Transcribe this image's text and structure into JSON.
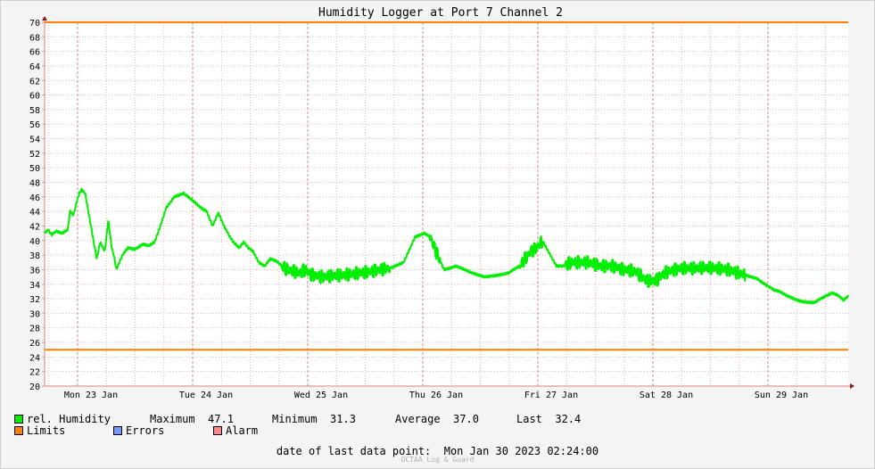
{
  "chart_data": {
    "type": "line",
    "title": "Humidity Logger at Port 7 Channel 2",
    "ylim": [
      20,
      70
    ],
    "ytick_step": 2,
    "xlim": [
      0,
      6.94
    ],
    "x_tick_labels": [
      "Mon 23 Jan",
      "Tue 24 Jan",
      "Wed 25 Jan",
      "Thu 26 Jan",
      "Fri 27 Jan",
      "Sat 28 Jan",
      "Sun 29 Jan"
    ],
    "grid": true,
    "limits": [
      70,
      25
    ],
    "series": [
      {
        "name": "rel. Humidity",
        "color": "#00ee00",
        "x": [
          0,
          0.03,
          0.06,
          0.1,
          0.15,
          0.2,
          0.22,
          0.25,
          0.28,
          0.3,
          0.32,
          0.35,
          0.4,
          0.45,
          0.48,
          0.52,
          0.55,
          0.58,
          0.6,
          0.62,
          0.65,
          0.68,
          0.72,
          0.78,
          0.85,
          0.9,
          0.95,
          1.0,
          1.05,
          1.12,
          1.2,
          1.28,
          1.35,
          1.4,
          1.45,
          1.5,
          1.55,
          1.6,
          1.63,
          1.68,
          1.72,
          1.76,
          1.8,
          1.85,
          1.9,
          1.95,
          2.0,
          2.05,
          2.1,
          2.15,
          2.2,
          2.25,
          2.3,
          2.4,
          2.5,
          2.6,
          2.7,
          2.8,
          2.9,
          3.0,
          3.1,
          3.2,
          3.28,
          3.33,
          3.38,
          3.45,
          3.5,
          3.55,
          3.6,
          3.7,
          3.8,
          3.9,
          4.0,
          4.1,
          4.15,
          4.2,
          4.25,
          4.3,
          4.35,
          4.42,
          4.48,
          4.55,
          4.62,
          4.7,
          4.8,
          4.9,
          5.0,
          5.1,
          5.2,
          5.28,
          5.35,
          5.4,
          5.45,
          5.5,
          5.6,
          5.7,
          5.8,
          5.9,
          6.0,
          6.05,
          6.1,
          6.15,
          6.2,
          6.3,
          6.35,
          6.4,
          6.5,
          6.55,
          6.6,
          6.65,
          6.7,
          6.8,
          6.85,
          6.9,
          6.94
        ],
        "y": [
          41,
          41.5,
          40.8,
          41.3,
          41,
          41.5,
          44,
          43.5,
          45.5,
          46.5,
          47,
          46.5,
          42,
          37.5,
          39.8,
          38.5,
          42.8,
          39,
          37.8,
          36,
          37.2,
          38.2,
          39,
          38.8,
          39.5,
          39.3,
          39.8,
          42,
          44.5,
          46,
          46.5,
          45.5,
          44.5,
          44,
          42,
          43.8,
          42,
          40.5,
          39.8,
          39,
          39.8,
          39,
          38.5,
          37,
          36.5,
          37.5,
          37.2,
          36.5,
          36,
          35.8,
          35.5,
          36,
          35.3,
          35,
          35.2,
          35.3,
          35.5,
          35.7,
          36,
          36.3,
          37,
          40.5,
          41,
          40.5,
          38.5,
          36,
          36.2,
          36.5,
          36.2,
          35.5,
          35,
          35.2,
          35.5,
          36.5,
          37.5,
          38.5,
          39,
          40,
          38.5,
          36.5,
          36.5,
          37,
          37,
          37,
          36.5,
          36.5,
          36,
          35.8,
          34.5,
          34.5,
          35.5,
          35.8,
          36,
          36.2,
          36.2,
          36.3,
          36.2,
          36,
          35.5,
          35.3,
          35,
          34.8,
          34.2,
          33.2,
          33,
          32.5,
          31.8,
          31.6,
          31.5,
          31.5,
          32,
          32.8,
          32.5,
          31.8,
          32.4
        ],
        "noisy_spans": [
          [
            2.05,
            2.98
          ],
          [
            3.33,
            3.42
          ],
          [
            4.1,
            4.3
          ],
          [
            4.5,
            6.05
          ]
        ]
      }
    ]
  },
  "legend": {
    "series_label": "rel. Humidity",
    "maximum_label": "Maximum",
    "maximum_value": "47.1",
    "minimum_label": "Minimum",
    "minimum_value": "31.3",
    "average_label": "Average",
    "average_value": "37.0",
    "last_label": "Last",
    "last_value": "32.4",
    "limits_label": "Limits",
    "errors_label": "Errors",
    "alarm_label": "Alarm",
    "colors": {
      "humidity": "#00ee00",
      "limits": "#ff7f00",
      "errors": "#7799ff",
      "alarm": "#ff8888"
    }
  },
  "footer": {
    "label": "date of last data point:",
    "value": "Mon Jan 30 2023 02:24:00",
    "credit": "OCTAA Log & Guard"
  }
}
